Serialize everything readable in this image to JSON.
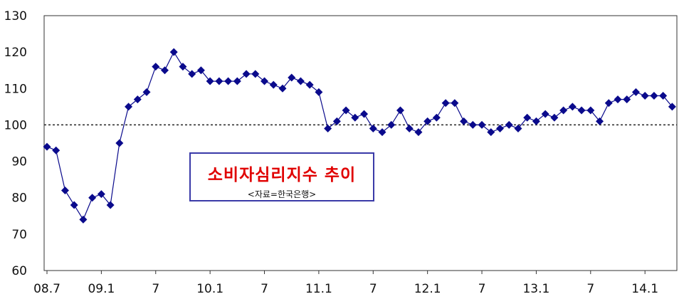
{
  "chart_data": {
    "type": "line",
    "title": "소비자심리지수 추이",
    "source": "<자료=한국은행>",
    "xlabel": "",
    "ylabel": "",
    "ylim": [
      60,
      130
    ],
    "yticks": [
      60,
      70,
      80,
      90,
      100,
      110,
      120,
      130
    ],
    "xtick_labels": [
      {
        "index": 0,
        "label": "08.7"
      },
      {
        "index": 6,
        "label": "09.1"
      },
      {
        "index": 12,
        "label": "7"
      },
      {
        "index": 18,
        "label": "10.1"
      },
      {
        "index": 24,
        "label": "7"
      },
      {
        "index": 30,
        "label": "11.1"
      },
      {
        "index": 36,
        "label": "7"
      },
      {
        "index": 42,
        "label": "12.1"
      },
      {
        "index": 48,
        "label": "7"
      },
      {
        "index": 54,
        "label": "13.1"
      },
      {
        "index": 60,
        "label": "7"
      },
      {
        "index": 66,
        "label": "14.1"
      }
    ],
    "reference_line": 100,
    "grid": false,
    "marker": "diamond",
    "color": "#0a0a8c",
    "series": [
      {
        "values": [
          94,
          93,
          82,
          78,
          74,
          80,
          81,
          78,
          95,
          105,
          107,
          109,
          116,
          115,
          120,
          116,
          114,
          115,
          112,
          112,
          112,
          112,
          114,
          114,
          112,
          111,
          110,
          113,
          112,
          111,
          109,
          99,
          101,
          104,
          102,
          103,
          99,
          98,
          100,
          104,
          99,
          98,
          101,
          102,
          106,
          106,
          101,
          100,
          100,
          98,
          99,
          100,
          99,
          102,
          101,
          103,
          102,
          104,
          105,
          104,
          104,
          101,
          106,
          107,
          107,
          109,
          108,
          108,
          108,
          105
        ]
      }
    ]
  }
}
